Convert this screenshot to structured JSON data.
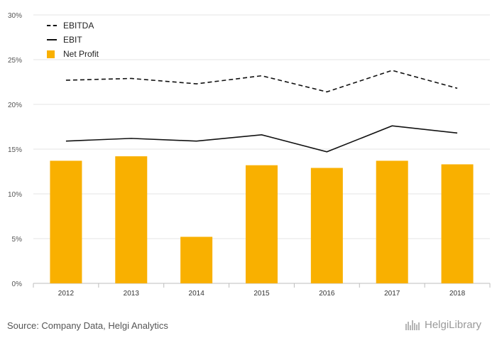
{
  "chart_data": {
    "type": "bar",
    "categories": [
      "2012",
      "2013",
      "2014",
      "2015",
      "2016",
      "2017",
      "2018"
    ],
    "series": [
      {
        "name": "EBITDA",
        "type": "line",
        "style": "dashed",
        "values": [
          22.7,
          22.9,
          22.3,
          23.2,
          21.4,
          23.8,
          21.8
        ]
      },
      {
        "name": "EBIT",
        "type": "line",
        "style": "solid",
        "values": [
          15.9,
          16.2,
          15.9,
          16.6,
          14.7,
          17.6,
          16.8
        ]
      },
      {
        "name": "Net Profit",
        "type": "bar",
        "values": [
          13.7,
          14.2,
          5.2,
          13.2,
          12.9,
          13.7,
          13.3
        ]
      }
    ],
    "ylim": [
      0,
      30
    ],
    "yticks": [
      "0%",
      "5%",
      "10%",
      "15%",
      "20%",
      "25%",
      "30%"
    ],
    "ytick_values": [
      0,
      5,
      10,
      15,
      20,
      25,
      30
    ],
    "grid": true,
    "legend": "top-left",
    "colors": {
      "bar": "#F9B000",
      "line": "#111111",
      "grid": "#e6e6e6",
      "axis_text": "#555555"
    }
  },
  "source": "Source: Company Data, Helgi Analytics",
  "brand": {
    "icon": "helgi-library-logo-icon",
    "text": "HelgiLibrary"
  }
}
